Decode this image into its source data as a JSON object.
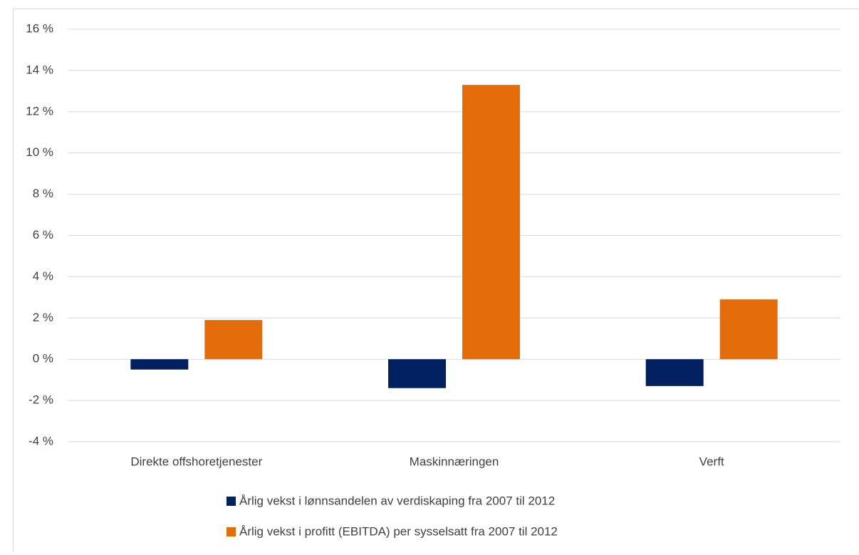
{
  "chart_data": {
    "type": "bar",
    "categories": [
      "Direkte offshoretjenester",
      "Maskinnæringen",
      "Verft"
    ],
    "series": [
      {
        "name": "Årlig vekst i lønnsandelen av verdiskaping fra 2007 til 2012",
        "color": "#002060",
        "values": [
          -0.5,
          -1.4,
          -1.3
        ]
      },
      {
        "name": "Årlig vekst i profitt (EBITDA) per sysselsatt fra 2007 til 2012",
        "color": "#e46c0a",
        "values": [
          1.9,
          13.3,
          2.9
        ]
      }
    ],
    "ylim": [
      -4,
      16
    ],
    "yticks": [
      {
        "value": -4,
        "label": "-4 %"
      },
      {
        "value": -2,
        "label": "-2 %"
      },
      {
        "value": 0,
        "label": "0 %"
      },
      {
        "value": 2,
        "label": "2 %"
      },
      {
        "value": 4,
        "label": "4 %"
      },
      {
        "value": 6,
        "label": "6 %"
      },
      {
        "value": 8,
        "label": "8 %"
      },
      {
        "value": 10,
        "label": "10 %"
      },
      {
        "value": 12,
        "label": "12 %"
      },
      {
        "value": 14,
        "label": "14 %"
      },
      {
        "value": 16,
        "label": "16 %"
      }
    ],
    "grid": true,
    "legend": "bottom"
  }
}
